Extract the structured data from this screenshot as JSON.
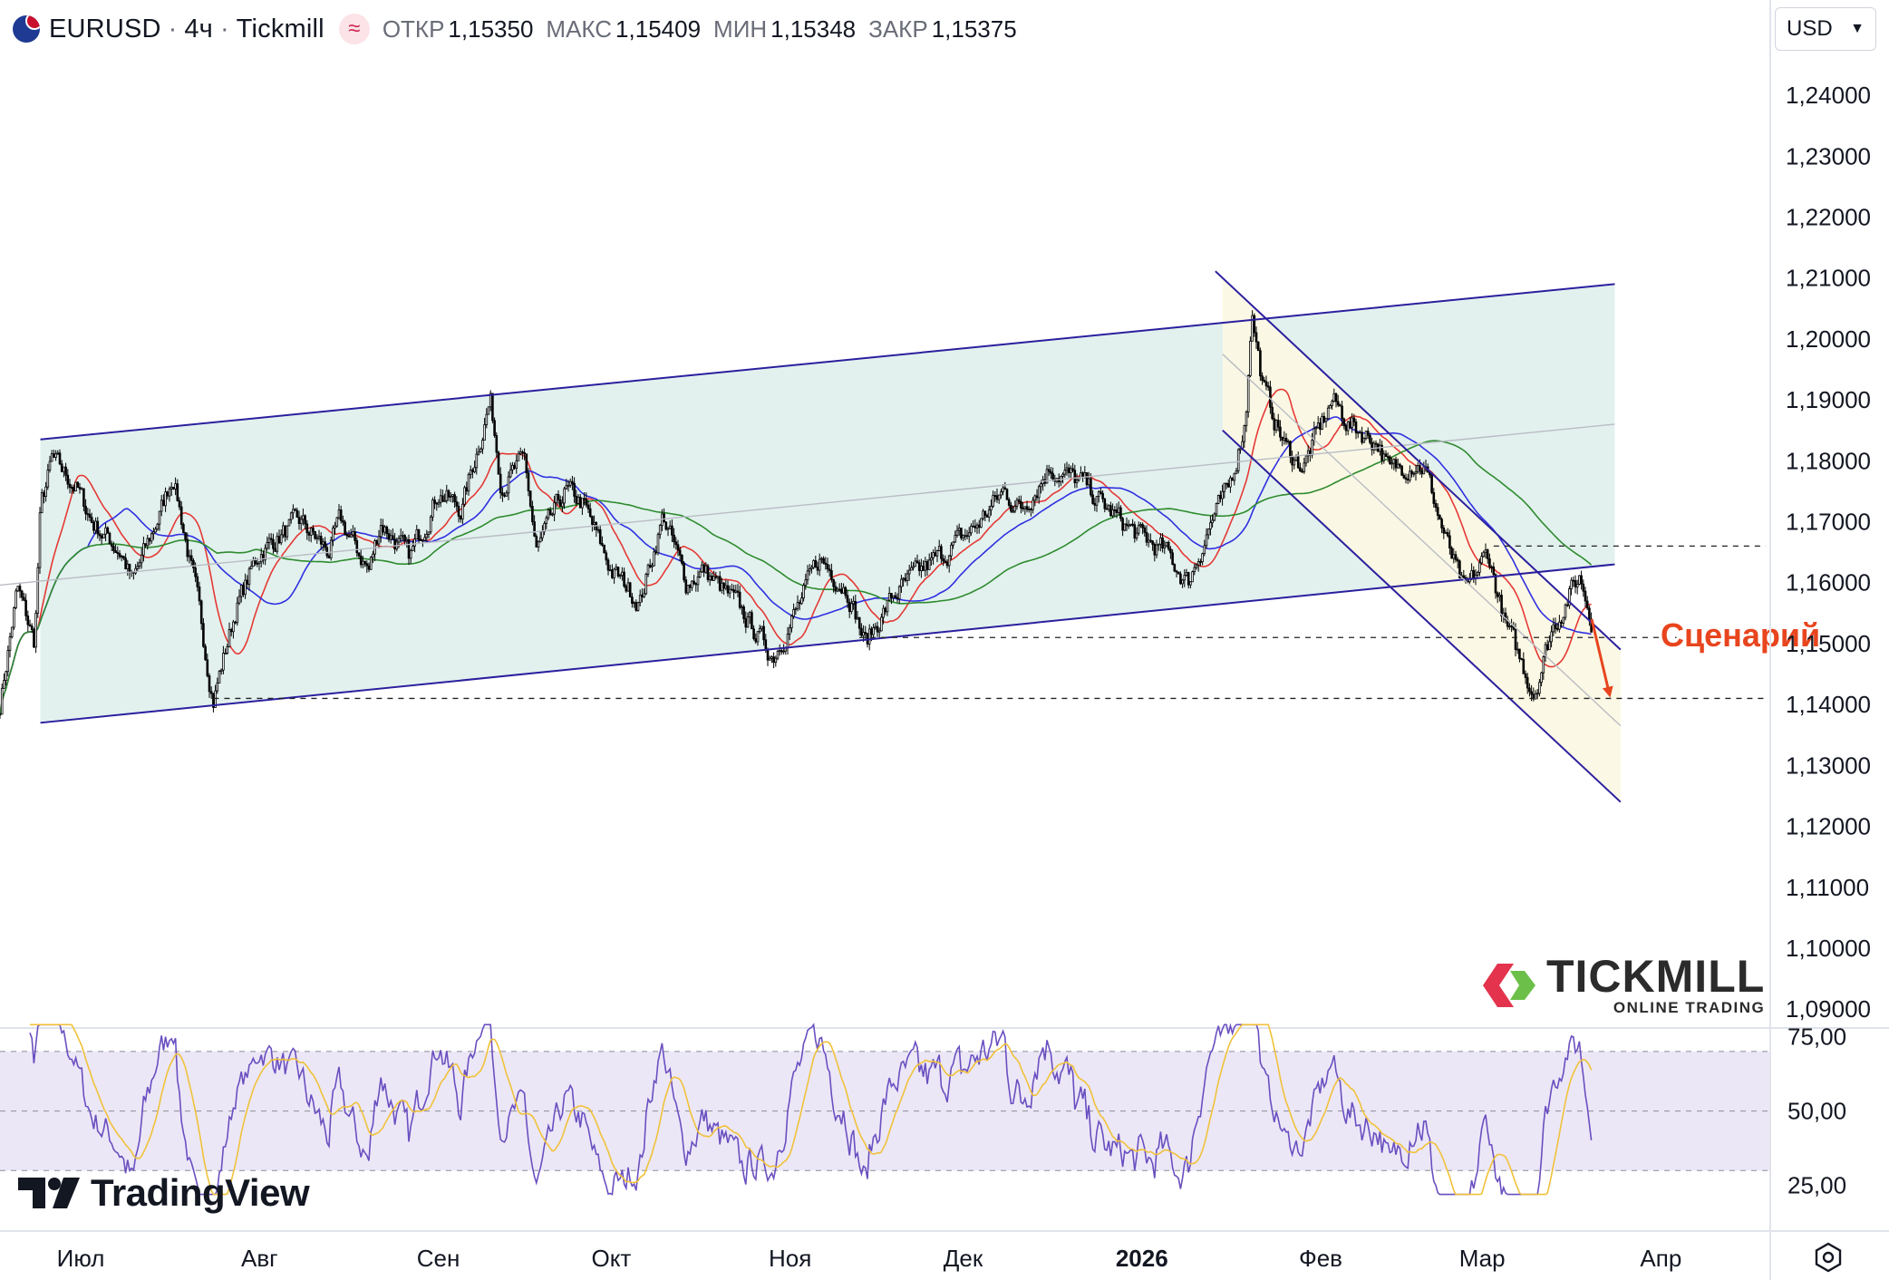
{
  "header": {
    "symbol": "EURUSD",
    "sep": "·",
    "timeframe": "4ч",
    "broker": "Tickmill",
    "wave_icon": "≈",
    "open_label": "ОТКР",
    "open": "1,15350",
    "high_label": "МАКС",
    "high": "1,15409",
    "low_label": "МИН",
    "low": "1,15348",
    "close_label": "ЗАКР",
    "close": "1,15375"
  },
  "currency_selector": {
    "value": "USD"
  },
  "logos": {
    "tradingview": "TradingView",
    "tickmill_name": "TICKMILL",
    "tickmill_sub": "ONLINE TRADING"
  },
  "chart_data": {
    "type": "candlestick",
    "price_axis": {
      "ticks": [
        "1,24000",
        "1,23000",
        "1,22000",
        "1,21000",
        "1,20000",
        "1,19000",
        "1,18000",
        "1,17000",
        "1,16000",
        "1,15000",
        "1,14000",
        "1,13000",
        "1,12000",
        "1,11000",
        "1,10000",
        "1,09000"
      ],
      "range": [
        1.0875,
        1.247
      ]
    },
    "time_axis": {
      "labels": [
        "Июл",
        "Авг",
        "Сен",
        "Окт",
        "Ноя",
        "Дек",
        "2026",
        "Фев",
        "Мар",
        "Апр"
      ],
      "bold": [
        "2026"
      ]
    },
    "price_path": [
      [
        "2025-06-24",
        1.14
      ],
      [
        "2025-06-27",
        1.159
      ],
      [
        "2025-06-30",
        1.15
      ],
      [
        "2025-07-01",
        1.172
      ],
      [
        "2025-07-03",
        1.18
      ],
      [
        "2025-07-07",
        1.176
      ],
      [
        "2025-07-10",
        1.17
      ],
      [
        "2025-07-15",
        1.165
      ],
      [
        "2025-07-17",
        1.16
      ],
      [
        "2025-07-22",
        1.172
      ],
      [
        "2025-07-24",
        1.178
      ],
      [
        "2025-07-28",
        1.158
      ],
      [
        "2025-07-31",
        1.141
      ],
      [
        "2025-08-04",
        1.156
      ],
      [
        "2025-08-08",
        1.165
      ],
      [
        "2025-08-12",
        1.168
      ],
      [
        "2025-08-15",
        1.17
      ],
      [
        "2025-08-20",
        1.165
      ],
      [
        "2025-08-22",
        1.17
      ],
      [
        "2025-08-27",
        1.162
      ],
      [
        "2025-08-29",
        1.17
      ],
      [
        "2025-09-03",
        1.164
      ],
      [
        "2025-09-08",
        1.175
      ],
      [
        "2025-09-12",
        1.172
      ],
      [
        "2025-09-17",
        1.19
      ],
      [
        "2025-09-19",
        1.176
      ],
      [
        "2025-09-23",
        1.18
      ],
      [
        "2025-09-25",
        1.165
      ],
      [
        "2025-09-30",
        1.175
      ],
      [
        "2025-10-03",
        1.173
      ],
      [
        "2025-10-08",
        1.162
      ],
      [
        "2025-10-13",
        1.157
      ],
      [
        "2025-10-17",
        1.171
      ],
      [
        "2025-10-21",
        1.16
      ],
      [
        "2025-10-24",
        1.162
      ],
      [
        "2025-10-30",
        1.156
      ],
      [
        "2025-11-05",
        1.148
      ],
      [
        "2025-11-10",
        1.157
      ],
      [
        "2025-11-13",
        1.164
      ],
      [
        "2025-11-18",
        1.159
      ],
      [
        "2025-11-21",
        1.15
      ],
      [
        "2025-11-26",
        1.158
      ],
      [
        "2025-12-01",
        1.162
      ],
      [
        "2025-12-05",
        1.165
      ],
      [
        "2025-12-10",
        1.169
      ],
      [
        "2025-12-15",
        1.175
      ],
      [
        "2025-12-18",
        1.172
      ],
      [
        "2025-12-23",
        1.179
      ],
      [
        "2025-12-29",
        1.176
      ],
      [
        "2026-01-02",
        1.172
      ],
      [
        "2026-01-07",
        1.168
      ],
      [
        "2026-01-12",
        1.165
      ],
      [
        "2026-01-16",
        1.16
      ],
      [
        "2026-01-20",
        1.17
      ],
      [
        "2026-01-23",
        1.175
      ],
      [
        "2026-01-26",
        1.187
      ],
      [
        "2026-01-27",
        1.205
      ],
      [
        "2026-01-29",
        1.192
      ],
      [
        "2026-02-02",
        1.182
      ],
      [
        "2026-02-05",
        1.179
      ],
      [
        "2026-02-10",
        1.19
      ],
      [
        "2026-02-13",
        1.186
      ],
      [
        "2026-02-18",
        1.183
      ],
      [
        "2026-02-20",
        1.178
      ],
      [
        "2026-02-24",
        1.18
      ],
      [
        "2026-02-26",
        1.179
      ],
      [
        "2026-03-02",
        1.166
      ],
      [
        "2026-03-05",
        1.158
      ],
      [
        "2026-03-09",
        1.165
      ],
      [
        "2026-03-12",
        1.153
      ],
      [
        "2026-03-17",
        1.142
      ],
      [
        "2026-03-20",
        1.152
      ],
      [
        "2026-03-23",
        1.158
      ],
      [
        "2026-03-25",
        1.161
      ],
      [
        "2026-03-27",
        1.154
      ]
    ],
    "annotations": {
      "scenario_label": "Сценарий"
    },
    "rsi_axis": {
      "ticks": [
        "75,00",
        "50,00",
        "25,00"
      ]
    },
    "colors": {
      "candles": "#000000",
      "sma_fast": "#e53935",
      "sma_mid": "#3030e0",
      "sma_slow": "#2e8b2e",
      "channel_line": "#2b1f9e",
      "channel_fill": "#dff0ec",
      "down_fill": "#fbf8e4",
      "rsi": "#6a4fc0",
      "rsi_signal": "#f0c23a",
      "rsi_band": "#ece7f7",
      "scenario": "#e8451e"
    }
  }
}
